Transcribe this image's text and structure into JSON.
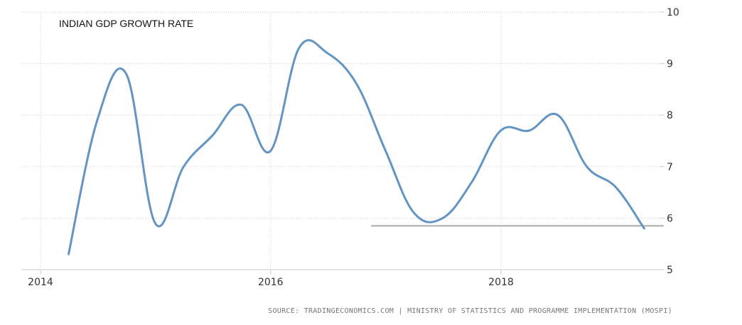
{
  "chart_data": {
    "type": "line",
    "title": "INDIAN GDP  GROWTH RATE",
    "source": "SOURCE: TRADINGECONOMICS.COM | MINISTRY OF STATISTICS AND PROGRAMME IMPLEMENTATION (MOSPI)",
    "xlabel": "",
    "ylabel": "",
    "x_tick_labels": [
      "2014",
      "2016",
      "2018"
    ],
    "y_tick_labels": [
      "5",
      "6",
      "7",
      "8",
      "9",
      "10"
    ],
    "xlim": [
      "2014-01-01",
      "2019-06-01"
    ],
    "ylim": [
      5,
      10
    ],
    "y_axis_side": "right",
    "grid": true,
    "series": [
      {
        "color": "#6394c4",
        "x": [
          "2014-03-31",
          "2014-06-30",
          "2014-09-30",
          "2014-12-31",
          "2015-03-31",
          "2015-06-30",
          "2015-09-30",
          "2015-12-31",
          "2016-03-31",
          "2016-06-30",
          "2016-09-30",
          "2016-12-31",
          "2017-03-31",
          "2017-06-30",
          "2017-09-30",
          "2017-12-31",
          "2018-03-31",
          "2018-06-30",
          "2018-09-30",
          "2018-12-31",
          "2019-03-31"
        ],
        "values": [
          5.3,
          7.9,
          8.8,
          5.9,
          7.0,
          7.6,
          8.2,
          7.3,
          9.3,
          9.2,
          8.6,
          7.3,
          6.1,
          6.0,
          6.7,
          7.7,
          7.7,
          8.0,
          7.0,
          6.6,
          5.8
        ]
      }
    ],
    "reference_line": {
      "value": 5.85,
      "x_start": "2016-11-15",
      "x_end": "2019-06-01",
      "color": "#bbbbbb"
    }
  }
}
